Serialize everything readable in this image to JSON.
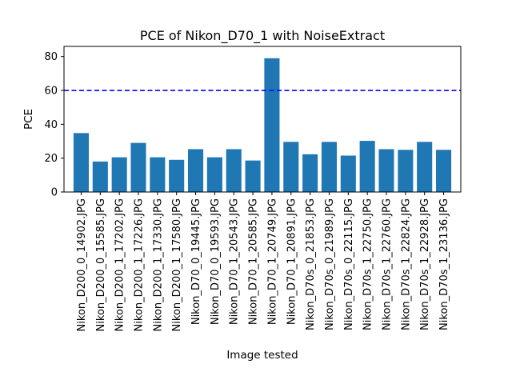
{
  "chart_data": {
    "type": "bar",
    "title": "PCE of Nikon_D70_1 with NoiseExtract",
    "xlabel": "Image tested",
    "ylabel": "PCE",
    "ylim": [
      0,
      86
    ],
    "yticks": [
      0,
      20,
      40,
      60,
      80
    ],
    "grid": false,
    "categories": [
      "Nikon_D200_0_14902.JPG",
      "Nikon_D200_0_15585.JPG",
      "Nikon_D200_1_17202.JPG",
      "Nikon_D200_1_17226.JPG",
      "Nikon_D200_1_17330.JPG",
      "Nikon_D200_1_17580.JPG",
      "Nikon_D70_0_19445.JPG",
      "Nikon_D70_0_19593.JPG",
      "Nikon_D70_1_20543.JPG",
      "Nikon_D70_1_20585.JPG",
      "Nikon_D70_1_20749.JPG",
      "Nikon_D70_1_20891.JPG",
      "Nikon_D70s_0_21853.JPG",
      "Nikon_D70s_0_21989.JPG",
      "Nikon_D70s_0_22115.JPG",
      "Nikon_D70s_1_22750.JPG",
      "Nikon_D70s_1_22760.JPG",
      "Nikon_D70s_1_22824.JPG",
      "Nikon_D70s_1_22928.JPG",
      "Nikon_D70s_1_23136.JPG"
    ],
    "values": [
      34.8,
      18,
      20.5,
      29,
      20.5,
      19,
      25.3,
      20.5,
      25.3,
      18.6,
      79,
      29.6,
      22.3,
      29.6,
      21.5,
      30.2,
      25.3,
      24.9,
      29.6,
      24.9
    ],
    "threshold": 60,
    "bar_color": "#1f77b4",
    "threshold_color": "#0000ff"
  }
}
